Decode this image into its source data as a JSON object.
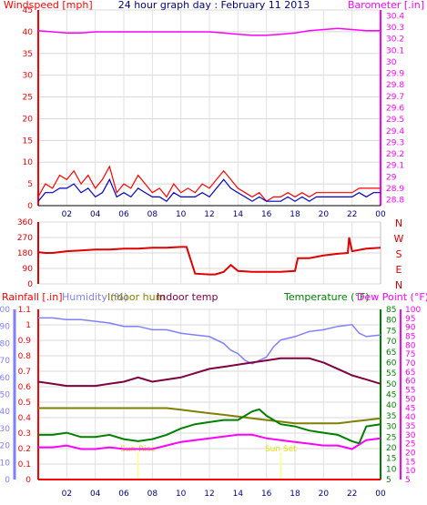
{
  "title": "24 hour graph day : February 11 2013",
  "colors": {
    "wind": "#ff0000",
    "gust_avg": "#0000c0",
    "baro": "#ff00ff",
    "dir": "#e00000",
    "rain": "#ff0000",
    "humidity": "#8080ff",
    "indoor_hum": "#808000",
    "indoor_temp": "#800040",
    "temperature": "#008000",
    "dewpoint": "#ff00ff",
    "grid_h": "#d8d8d8",
    "grid_v": "#e0e0e0",
    "axis": "#000000",
    "sun": "#ffff80"
  },
  "chart_data": [
    {
      "id": "wind_baro",
      "type": "line",
      "x_ticks": [
        "02",
        "04",
        "06",
        "08",
        "10",
        "12",
        "14",
        "16",
        "18",
        "20",
        "22",
        "00"
      ],
      "left_axis": {
        "label": "Windspeed [mph]",
        "ticks": [
          "45",
          "40",
          "35",
          "30",
          "25",
          "20",
          "15",
          "10",
          "5",
          "0"
        ],
        "ylim": [
          0,
          45
        ]
      },
      "right_axis": {
        "label": "Barometer [.in]",
        "ticks": [
          "30.4",
          "30.3",
          "30.2",
          "30.1",
          "30",
          "29.9",
          "29.8",
          "29.7",
          "29.6",
          "29.5",
          "29.4",
          "29.3",
          "29.2",
          "29.1",
          "29",
          "28.9",
          "28.8"
        ],
        "ylim": [
          28.75,
          30.45
        ]
      },
      "series": [
        {
          "key": "barometer",
          "axis": "right",
          "x": [
            0,
            1,
            2,
            3,
            4,
            5,
            6,
            7,
            8,
            9,
            10,
            11,
            12,
            13,
            14,
            15,
            16,
            17,
            18,
            19,
            20,
            21,
            22,
            23,
            24
          ],
          "values": [
            30.27,
            30.26,
            30.25,
            30.25,
            30.26,
            30.26,
            30.26,
            30.26,
            30.26,
            30.26,
            30.26,
            30.26,
            30.26,
            30.25,
            30.24,
            30.23,
            30.23,
            30.24,
            30.25,
            30.27,
            30.28,
            30.29,
            30.28,
            30.27,
            30.27
          ]
        },
        {
          "key": "windspeed",
          "axis": "left",
          "x": [
            0,
            0.5,
            1,
            1.5,
            2,
            2.5,
            3,
            3.5,
            4,
            4.5,
            5,
            5.5,
            6,
            6.5,
            7,
            7.5,
            8,
            8.5,
            9,
            9.5,
            10,
            10.5,
            11,
            11.5,
            12,
            12.5,
            13,
            13.5,
            14,
            14.5,
            15,
            15.5,
            16,
            16.5,
            17,
            17.5,
            18,
            18.5,
            19,
            19.5,
            20,
            20.5,
            21,
            21.5,
            22,
            22.5,
            23,
            23.5,
            24
          ],
          "values": [
            2,
            5,
            4,
            7,
            6,
            8,
            5,
            7,
            4,
            6,
            9,
            3,
            5,
            4,
            7,
            5,
            3,
            4,
            2,
            5,
            3,
            4,
            3,
            5,
            4,
            6,
            8,
            6,
            4,
            3,
            2,
            3,
            1,
            2,
            2,
            3,
            2,
            3,
            2,
            3,
            3,
            3,
            3,
            3,
            3,
            4,
            4,
            4,
            4
          ]
        },
        {
          "key": "average",
          "axis": "left",
          "x": [
            0,
            0.5,
            1,
            1.5,
            2,
            2.5,
            3,
            3.5,
            4,
            4.5,
            5,
            5.5,
            6,
            6.5,
            7,
            7.5,
            8,
            8.5,
            9,
            9.5,
            10,
            10.5,
            11,
            11.5,
            12,
            12.5,
            13,
            13.5,
            14,
            14.5,
            15,
            15.5,
            16,
            16.5,
            17,
            17.5,
            18,
            18.5,
            19,
            19.5,
            20,
            20.5,
            21,
            21.5,
            22,
            22.5,
            23,
            23.5,
            24
          ],
          "values": [
            1,
            3,
            3,
            4,
            4,
            5,
            3,
            4,
            2,
            3,
            6,
            2,
            3,
            2,
            4,
            3,
            2,
            2,
            1,
            3,
            2,
            2,
            2,
            3,
            2,
            4,
            6,
            4,
            3,
            2,
            1,
            2,
            1,
            1,
            1,
            2,
            1,
            2,
            1,
            2,
            2,
            2,
            2,
            2,
            2,
            3,
            2,
            3,
            3
          ]
        }
      ]
    },
    {
      "id": "wind_direction",
      "type": "line",
      "left_axis": {
        "ticks": [
          "360",
          "270",
          "180",
          "90",
          "0"
        ],
        "ylim": [
          0,
          360
        ]
      },
      "right_axis": {
        "ticks": [
          "N",
          "W",
          "S",
          "E",
          "N"
        ]
      },
      "series": [
        {
          "key": "direction",
          "x": [
            0,
            0.5,
            1,
            2,
            3,
            4,
            5,
            6,
            7,
            8,
            9,
            10,
            10.4,
            11,
            12,
            12.4,
            13,
            13.5,
            14,
            15,
            16,
            17,
            18,
            18.2,
            19,
            20,
            21,
            21.7,
            21.8,
            22,
            23,
            24
          ],
          "values": [
            185,
            180,
            180,
            190,
            195,
            200,
            200,
            205,
            205,
            210,
            210,
            215,
            215,
            60,
            55,
            55,
            70,
            110,
            75,
            70,
            70,
            70,
            75,
            150,
            150,
            165,
            175,
            180,
            270,
            190,
            205,
            210
          ]
        }
      ]
    },
    {
      "id": "rain_temp",
      "type": "line",
      "legend": [
        "Rainfall [.in]",
        "Humidity (%)",
        "Indoor hum",
        "Indoor temp",
        "Temperature (°F)",
        "Dew Point (°F)"
      ],
      "left_axis_rain": {
        "ticks": [
          "1.1",
          "1",
          "0.9",
          "0.8",
          "0.7",
          "0.6",
          "0.5",
          "0.4",
          "0.3",
          "0.2",
          "0.1",
          "0"
        ],
        "ylim": [
          0,
          1.1
        ]
      },
      "left_axis_humidity": {
        "ticks": [
          "100",
          "90",
          "80",
          "70",
          "60",
          "50",
          "40",
          "30",
          "20",
          "10",
          "0"
        ],
        "ylim": [
          0,
          100
        ]
      },
      "right_axis_temp": {
        "ticks": [
          "85",
          "80",
          "75",
          "70",
          "65",
          "60",
          "55",
          "50",
          "45",
          "40",
          "35",
          "30",
          "25",
          "20",
          "15",
          "10",
          "5"
        ],
        "ylim": [
          5,
          85
        ]
      },
      "right_axis_dew": {
        "ticks": [
          "100",
          "95",
          "90",
          "85",
          "80",
          "75",
          "70",
          "65",
          "60",
          "55",
          "50",
          "45",
          "40",
          "35",
          "30",
          "25",
          "20",
          "15",
          "10",
          "5"
        ],
        "ylim": [
          5,
          100
        ]
      },
      "sun_labels": [
        {
          "text": "Sun Rise",
          "x": 7.0
        },
        {
          "text": "Sun Set",
          "x": 17.0
        }
      ],
      "series": [
        {
          "key": "rainfall",
          "axis": "rain",
          "x": [
            0,
            24
          ],
          "values": [
            0,
            0
          ]
        },
        {
          "key": "humidity",
          "axis": "hum",
          "x": [
            0,
            1,
            2,
            3,
            4,
            5,
            6,
            7,
            8,
            9,
            10,
            11,
            12,
            13,
            13.5,
            14,
            14.5,
            15,
            15.5,
            16,
            16.5,
            17,
            18,
            19,
            20,
            21,
            22,
            22.5,
            23,
            24
          ],
          "values": [
            95,
            95,
            94,
            94,
            93,
            92,
            90,
            90,
            88,
            88,
            86,
            85,
            84,
            80,
            76,
            74,
            70,
            68,
            70,
            72,
            78,
            82,
            84,
            87,
            88,
            90,
            91,
            86,
            84,
            85
          ]
        },
        {
          "key": "indoor_hum",
          "axis": "hum",
          "x": [
            0,
            1,
            2,
            3,
            4,
            5,
            6,
            7,
            8,
            9,
            10,
            11,
            12,
            13,
            14,
            15,
            16,
            17,
            18,
            19,
            20,
            21,
            22,
            23,
            24
          ],
          "values": [
            42,
            42,
            42,
            42,
            42,
            42,
            42,
            42,
            42,
            42,
            41,
            40,
            39,
            38,
            37,
            36,
            35,
            34,
            33,
            33,
            33,
            33,
            34,
            35,
            36
          ]
        },
        {
          "key": "indoor_temp",
          "axis": "temp",
          "x": [
            0,
            1,
            2,
            3,
            4,
            5,
            6,
            7,
            8,
            9,
            10,
            11,
            12,
            13,
            14,
            15,
            16,
            17,
            18,
            19,
            20,
            21,
            22,
            23,
            24
          ],
          "values": [
            51,
            50,
            49,
            49,
            49,
            50,
            51,
            53,
            51,
            52,
            53,
            55,
            57,
            58,
            59,
            60,
            61,
            62,
            62,
            62,
            60,
            57,
            54,
            52,
            50
          ]
        },
        {
          "key": "temperature",
          "axis": "temp",
          "x": [
            0,
            1,
            2,
            3,
            4,
            5,
            6,
            7,
            8,
            9,
            10,
            11,
            12,
            13,
            14,
            15,
            15.5,
            16,
            17,
            18,
            19,
            20,
            21,
            22,
            22.5,
            23,
            24
          ],
          "values": [
            26,
            26,
            27,
            25,
            25,
            26,
            24,
            23,
            24,
            26,
            29,
            31,
            32,
            33,
            33,
            37,
            38,
            35,
            31,
            30,
            28,
            27,
            26,
            23,
            22,
            30,
            31
          ]
        },
        {
          "key": "dewpoint",
          "axis": "dew",
          "x": [
            0,
            1,
            2,
            3,
            4,
            5,
            6,
            7,
            8,
            9,
            10,
            11,
            12,
            13,
            14,
            15,
            16,
            17,
            18,
            19,
            20,
            21,
            22,
            23,
            24
          ],
          "values": [
            23,
            23,
            24,
            22,
            22,
            23,
            22,
            22,
            22,
            24,
            26,
            27,
            28,
            29,
            30,
            30,
            28,
            27,
            26,
            25,
            24,
            24,
            22,
            27,
            28
          ]
        }
      ]
    }
  ]
}
